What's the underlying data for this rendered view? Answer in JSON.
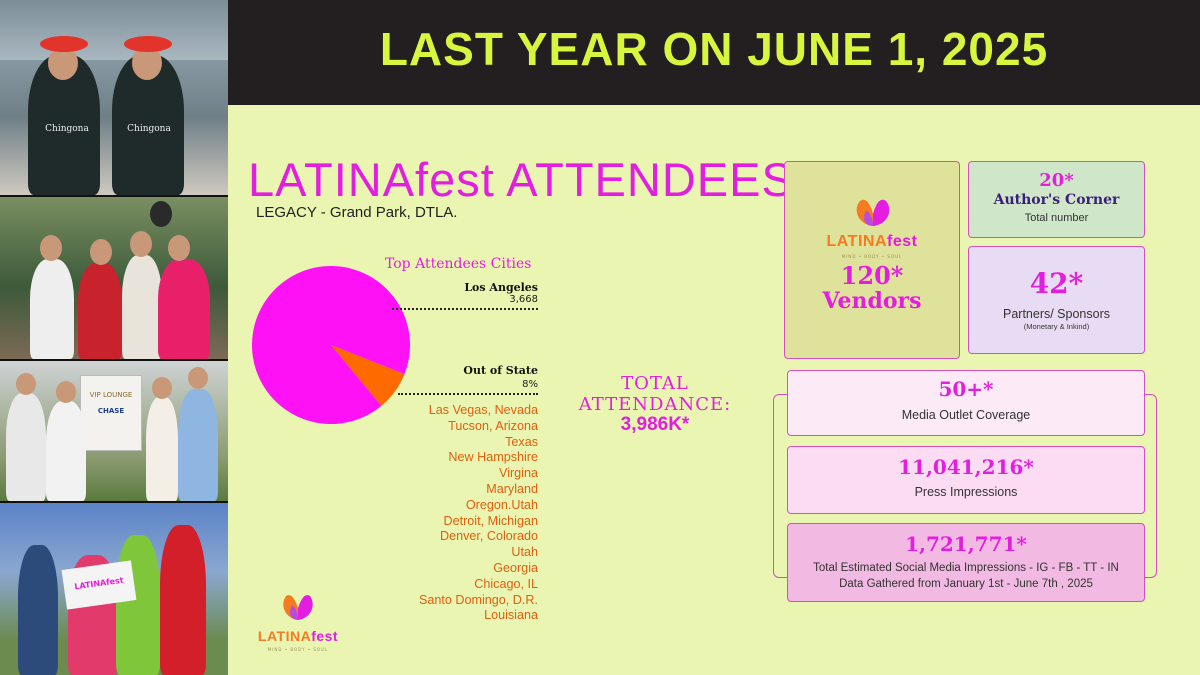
{
  "banner": {
    "title": "LAST YEAR ON JUNE 1, 2025"
  },
  "attendees": {
    "title": "LATINAfest ATTENDEES",
    "subtitle": "LEGACY - Grand Park, DTLA."
  },
  "photos": {
    "sash_left": "Chingona",
    "sash_right": "Chingona",
    "sign_title": "VIP LOUNGE",
    "sign_sponsor": "CHASE",
    "banner_text": "LATINAfest"
  },
  "chart_data": {
    "type": "pie",
    "title": "Top Attendees Cities",
    "slices": [
      {
        "name": "Los Angeles",
        "label": "3,668",
        "value": 92,
        "color": "#ff11f5"
      },
      {
        "name": "Out of State",
        "label": "8%",
        "value": 8,
        "color": "#ff6a00"
      }
    ]
  },
  "out_of_state_cities": [
    "Las Vegas, Nevada",
    "Tucson, Arizona",
    "Texas",
    "New Hampshire",
    "Virgina",
    "Maryland",
    "Oregon.Utah",
    "Detroit, Michigan",
    "Denver, Colorado",
    "Utah",
    "Georgia",
    "Chicago, IL",
    "Santo Domingo, D.R.",
    "Louisiana"
  ],
  "total": {
    "label": "TOTAL ATTENDANCE:",
    "value": "3,986K*"
  },
  "logo": {
    "word_main": "LATINA",
    "word_fest": "fest",
    "tagline": "MIND • BODY • SOUL",
    "colors": {
      "main": "#f47b20",
      "fest": "#e41ee0",
      "tagline": "#9a8f55"
    }
  },
  "stats": {
    "vendors": {
      "number": "120*",
      "label": "Vendors"
    },
    "authors": {
      "number": "20*",
      "title": "Author's Corner",
      "desc": "Total number"
    },
    "partners": {
      "number": "42*",
      "desc": "Partners/ Sponsors",
      "note": "(Monetary & Inkind)"
    },
    "media": {
      "number": "50+*",
      "desc": "Media Outlet Coverage"
    },
    "press": {
      "number": "11,041,216*",
      "desc": "Press Impressions"
    },
    "social": {
      "number": "1,721,771*",
      "desc": "Total Estimated Social Media Impressions - IG - FB - TT - IN",
      "note": "Data Gathered from January 1st - June 7th , 2025"
    }
  },
  "colors": {
    "background": "#e9f5b0",
    "banner_bg": "#231f20",
    "banner_text": "#d9f63e",
    "accent": "#e41ee0",
    "city_text": "#e06010"
  }
}
